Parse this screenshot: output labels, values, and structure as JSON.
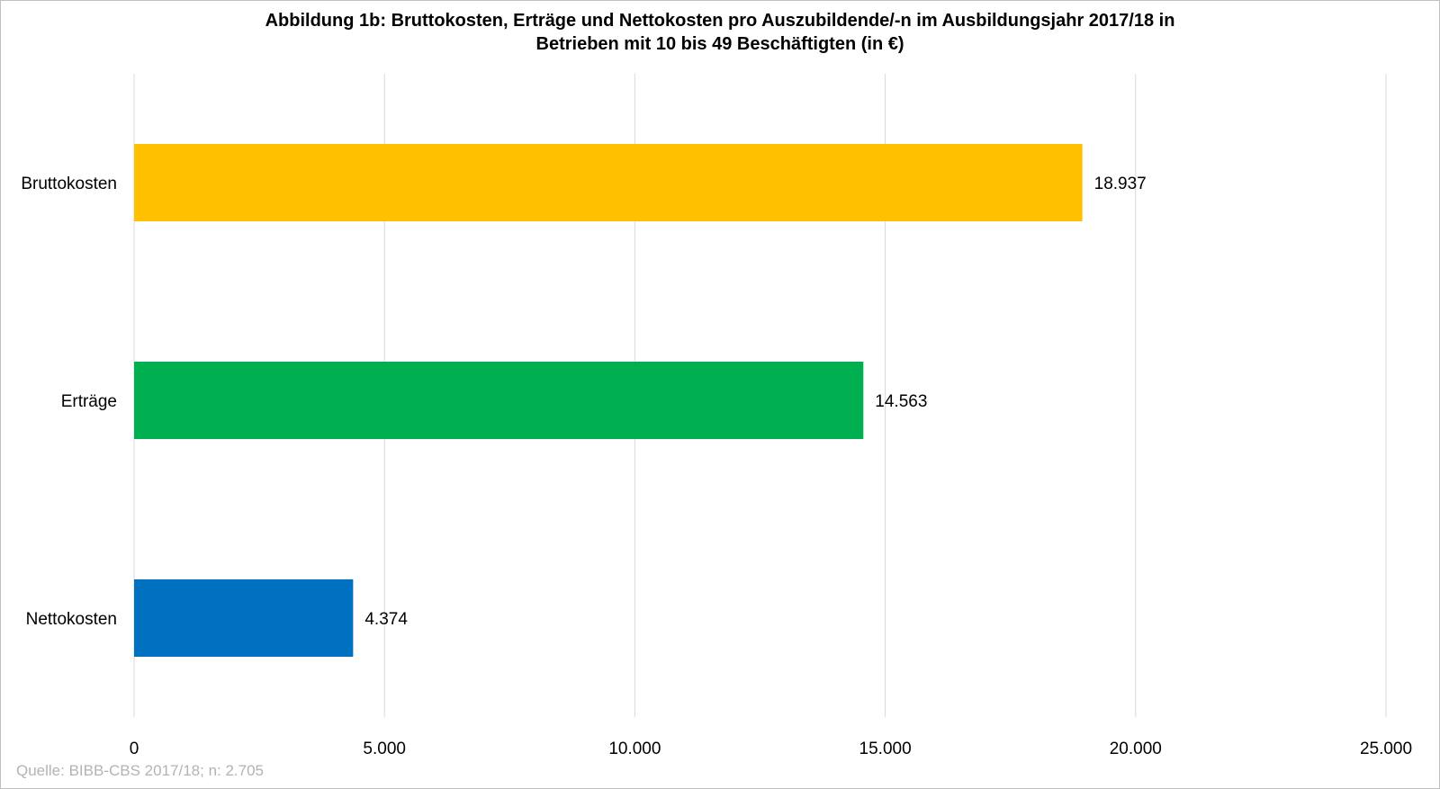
{
  "chart_data": {
    "type": "bar",
    "orientation": "horizontal",
    "title": {
      "line1": "Abbildung 1b: Bruttokosten, Erträge und Nettokosten pro Auszubildende/-n im Ausbildungsjahr 2017/18  in",
      "line2": "Betrieben mit 10 bis 49 Beschäftigten (in €)"
    },
    "categories": [
      "Bruttokosten",
      "Erträge",
      "Nettokosten"
    ],
    "values": [
      18937,
      14563,
      4374
    ],
    "value_labels": [
      "18.937",
      "14.563",
      "4.374"
    ],
    "colors": [
      "#FFC000",
      "#00B050",
      "#0070C0"
    ],
    "xlim": [
      0,
      25000
    ],
    "x_ticks": [
      0,
      5000,
      10000,
      15000,
      20000,
      25000
    ],
    "x_tick_labels": [
      "0",
      "5.000",
      "10.000",
      "15.000",
      "20.000",
      "25.000"
    ],
    "grid": "vertical",
    "gridline_color": "#d9d9d9",
    "xlabel": "",
    "ylabel": ""
  },
  "source_note": "Quelle: BIBB-CBS 2017/18; n: 2.705"
}
